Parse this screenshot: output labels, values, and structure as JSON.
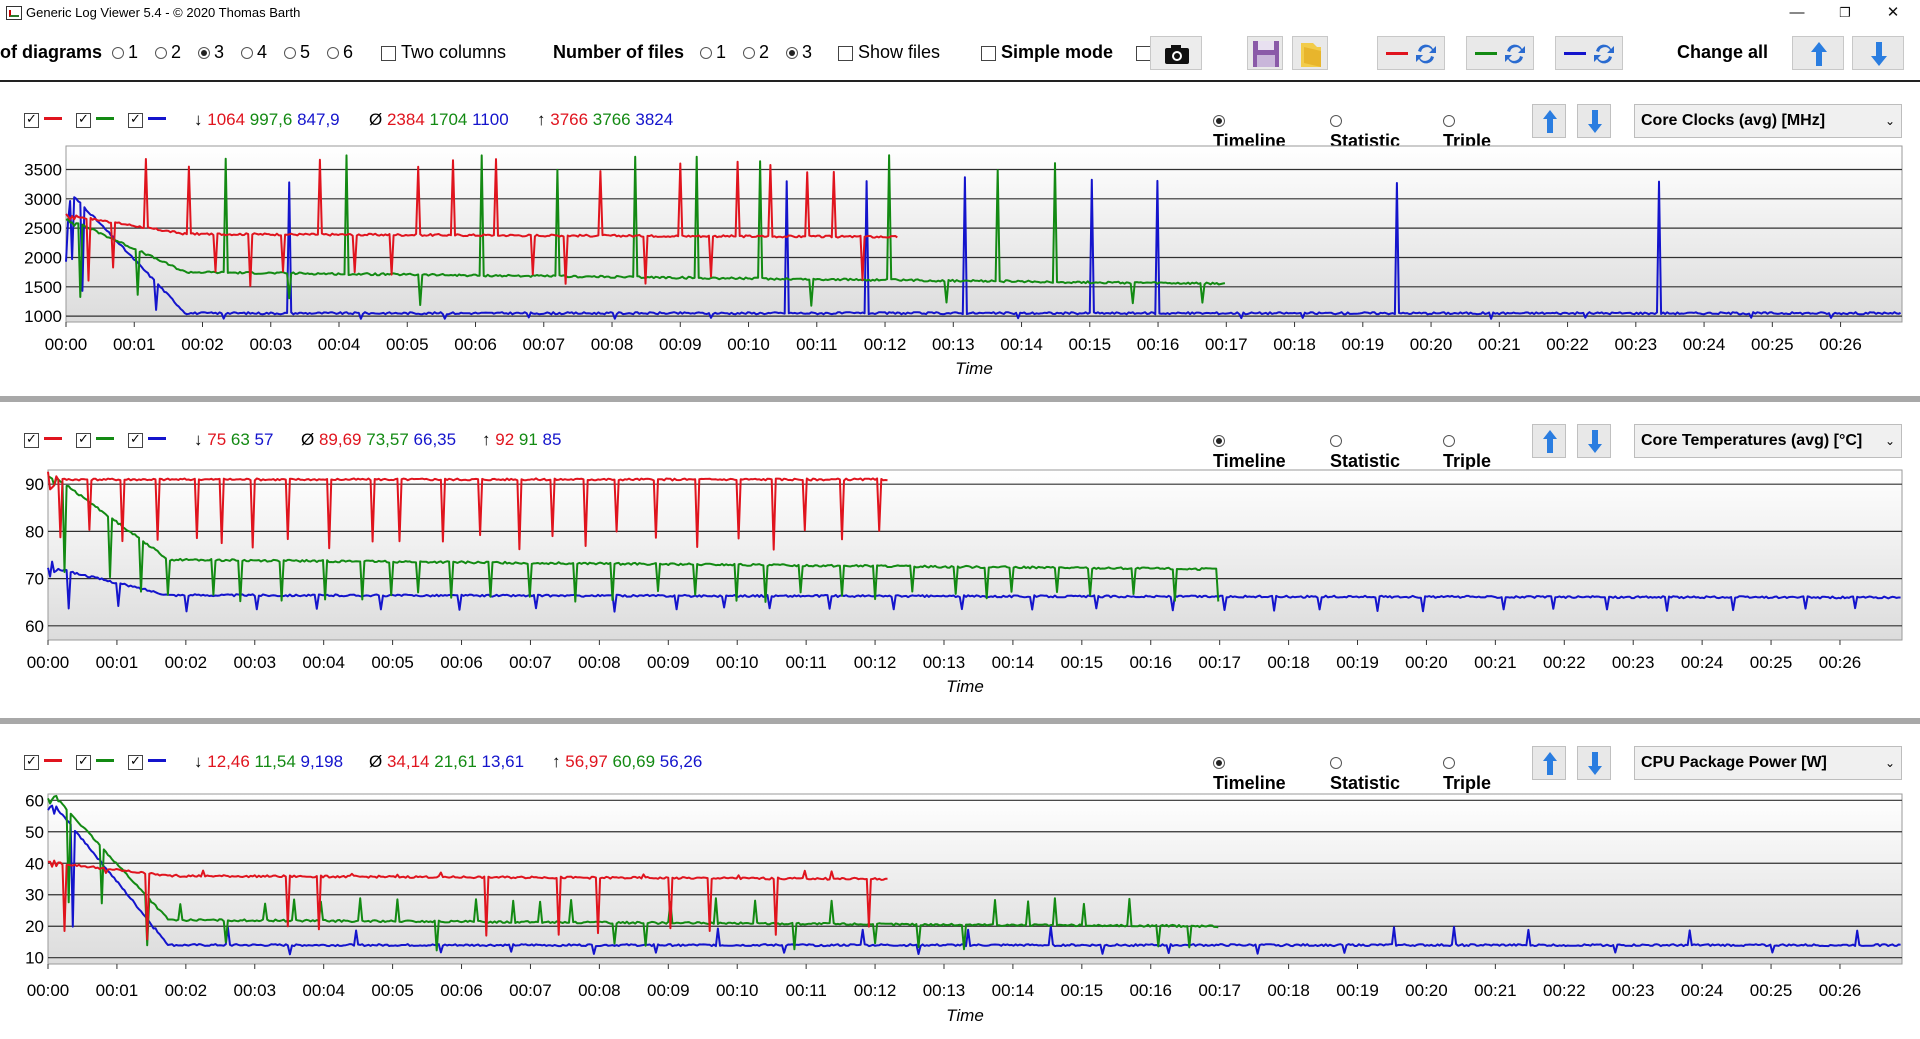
{
  "window": {
    "title": "Generic Log Viewer 5.4 - © 2020 Thomas Barth",
    "minimize": "—",
    "restore": "❐",
    "close": "✕"
  },
  "toolbar": {
    "diagrams_label": "of diagrams",
    "diagram_options": [
      "1",
      "2",
      "3",
      "4",
      "5",
      "6"
    ],
    "diagram_selected": "3",
    "two_columns": "Two columns",
    "files_label": "Number of files",
    "file_options": [
      "1",
      "2",
      "3"
    ],
    "file_selected": "3",
    "show_files": "Show files",
    "simple_mode": "Simple mode",
    "change_all": "Change all",
    "icons": [
      "camera-icon",
      "save-icon",
      "folder-icon",
      "swap-red-icon",
      "swap-green-icon",
      "swap-blue-icon",
      "arrow-up-icon",
      "arrow-down-icon"
    ]
  },
  "colors": {
    "red": "#e0141e",
    "green": "#138a13",
    "blue": "#1414cc",
    "grid": "#303030",
    "plot_top": "#ffffff",
    "plot_bottom": "#dcdcdc"
  },
  "mode_labels": {
    "timeline": "Timeline",
    "statistic": "Statistic",
    "triple": "Triple"
  },
  "panels": [
    {
      "min_symbol": "↓",
      "avg_symbol": "Ø",
      "max_symbol": "↑",
      "min": [
        "1064",
        "997,6",
        "847,9"
      ],
      "avg": [
        "2384",
        "1704",
        "1100"
      ],
      "max": [
        "3766",
        "3766",
        "3824"
      ],
      "selected": "Core Clocks (avg) [MHz]"
    },
    {
      "min_symbol": "↓",
      "avg_symbol": "Ø",
      "max_symbol": "↑",
      "min": [
        "75",
        "63",
        "57"
      ],
      "avg": [
        "89,69",
        "73,57",
        "66,35"
      ],
      "max": [
        "92",
        "91",
        "85"
      ],
      "selected": "Core Temperatures (avg) [°C]"
    },
    {
      "min_symbol": "↓",
      "avg_symbol": "Ø",
      "max_symbol": "↑",
      "min": [
        "12,46",
        "11,54",
        "9,198"
      ],
      "avg": [
        "34,14",
        "21,61",
        "13,61"
      ],
      "max": [
        "56,97",
        "60,69",
        "56,26"
      ],
      "selected": "CPU Package Power [W]"
    }
  ],
  "chart_data": [
    {
      "type": "line",
      "xlabel": "Time",
      "ylabel": "",
      "xlim": [
        0,
        26.9
      ],
      "ylim": [
        900,
        3900
      ],
      "yticks": [
        "1000",
        "1500",
        "2000",
        "2500",
        "3000",
        "3500"
      ],
      "xticks": [
        "00:00",
        "00:01",
        "00:02",
        "00:03",
        "00:04",
        "00:05",
        "00:06",
        "00:07",
        "00:08",
        "00:09",
        "00:10",
        "00:11",
        "00:12",
        "00:13",
        "00:14",
        "00:15",
        "00:16",
        "00:17",
        "00:18",
        "00:19",
        "00:20",
        "00:21",
        "00:22",
        "00:23",
        "00:24",
        "00:25",
        "00:26"
      ],
      "grid": true,
      "series": [
        {
          "color": "red",
          "end": 12.2,
          "base_start": 2700,
          "base_mid": 2400,
          "base_end": 2350,
          "spike_top": 3700,
          "dip": 1500,
          "spike_interval": 0.5
        },
        {
          "color": "green",
          "end": 17.0,
          "base_start": 2600,
          "base_mid": 1750,
          "base_end": 1550,
          "spike_top": 3750,
          "dip": 1150,
          "spike_interval": 1.0
        },
        {
          "color": "blue",
          "end": 26.9,
          "base_start": 3000,
          "base_mid": 1050,
          "base_end": 1050,
          "spike_top": 3500,
          "dip": 950,
          "spike_interval": 1.1
        }
      ]
    },
    {
      "type": "line",
      "xlabel": "Time",
      "ylabel": "",
      "xlim": [
        0,
        26.9
      ],
      "ylim": [
        57,
        93
      ],
      "yticks": [
        "60",
        "70",
        "80",
        "90"
      ],
      "xticks": [
        "00:00",
        "00:01",
        "00:02",
        "00:03",
        "00:04",
        "00:05",
        "00:06",
        "00:07",
        "00:08",
        "00:09",
        "00:10",
        "00:11",
        "00:12",
        "00:13",
        "00:14",
        "00:15",
        "00:16",
        "00:17",
        "00:18",
        "00:19",
        "00:20",
        "00:21",
        "00:22",
        "00:23",
        "00:24",
        "00:25",
        "00:26"
      ],
      "grid": true,
      "series": [
        {
          "color": "red",
          "end": 12.2,
          "base_start": 91,
          "base_mid": 91,
          "base_end": 91,
          "dip": 76,
          "spike_interval": 0.5
        },
        {
          "color": "green",
          "end": 17.0,
          "base_start": 91,
          "base_mid": 74,
          "base_end": 72,
          "dip": 65,
          "spike_interval": 0.5
        },
        {
          "color": "blue",
          "end": 26.9,
          "base_start": 72,
          "base_mid": 66.5,
          "base_end": 66,
          "dip": 63,
          "spike_interval": 0.9
        }
      ]
    },
    {
      "type": "line",
      "xlabel": "Time",
      "ylabel": "",
      "xlim": [
        0,
        26.9
      ],
      "ylim": [
        8,
        62
      ],
      "yticks": [
        "10",
        "20",
        "30",
        "40",
        "50",
        "60"
      ],
      "xticks": [
        "00:00",
        "00:01",
        "00:02",
        "00:03",
        "00:04",
        "00:05",
        "00:06",
        "00:07",
        "00:08",
        "00:09",
        "00:10",
        "00:11",
        "00:12",
        "00:13",
        "00:14",
        "00:15",
        "00:16",
        "00:17",
        "00:18",
        "00:19",
        "00:20",
        "00:21",
        "00:22",
        "00:23",
        "00:24",
        "00:25",
        "00:26"
      ],
      "grid": true,
      "series": [
        {
          "color": "red",
          "end": 12.2,
          "base_start": 40,
          "base_mid": 36,
          "base_end": 35,
          "spike_top": 38,
          "dip": 14,
          "spike_interval": 0.5
        },
        {
          "color": "green",
          "end": 17.0,
          "base_start": 60,
          "base_mid": 22,
          "base_end": 20,
          "spike_top": 29,
          "dip": 12,
          "spike_interval": 0.5
        },
        {
          "color": "blue",
          "end": 26.9,
          "base_start": 57,
          "base_mid": 14,
          "base_end": 14,
          "spike_top": 20,
          "dip": 11,
          "spike_interval": 1.0
        }
      ]
    }
  ]
}
